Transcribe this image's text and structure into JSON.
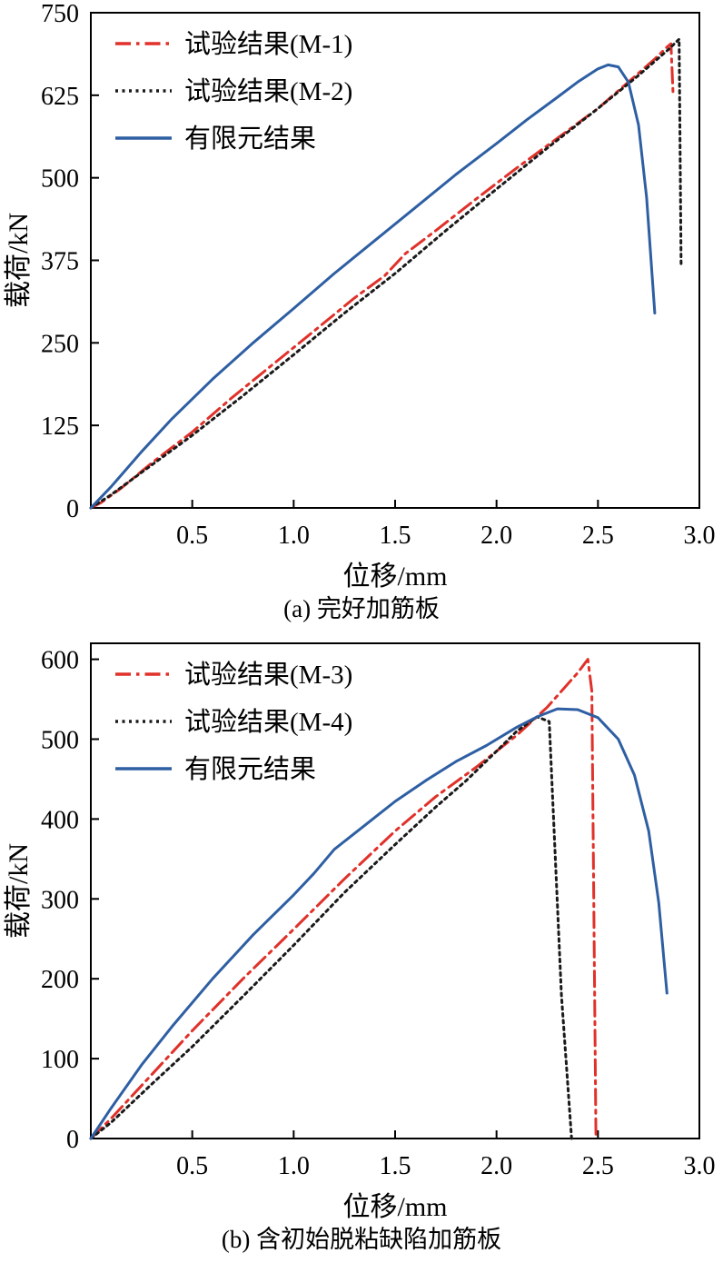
{
  "page": {
    "background": "#ffffff"
  },
  "colors": {
    "test_red": "#e0312a",
    "test_black": "#1a1a1a",
    "fem_blue": "#2e5fa3",
    "axis": "#000000"
  },
  "chart_data": [
    {
      "type": "line",
      "caption": "(a) 完好加筋板",
      "xlabel": "位移/mm",
      "ylabel": "载荷/kN",
      "xlim": [
        0,
        3.0
      ],
      "ylim": [
        0,
        750
      ],
      "xtick_values": [
        0.5,
        1.0,
        1.5,
        2.0,
        2.5,
        3.0
      ],
      "xtick_labels": [
        "0.5",
        "1.0",
        "1.5",
        "2.0",
        "2.5",
        "3.0"
      ],
      "ytick_values": [
        0,
        125,
        250,
        375,
        500,
        625,
        750
      ],
      "ytick_labels": [
        "0",
        "125",
        "250",
        "375",
        "500",
        "625",
        "750"
      ],
      "grid": false,
      "legend_position": "top-left",
      "series": [
        {
          "name": "试验结果(M-1)",
          "color": "#e0312a",
          "style": "dashdot",
          "width": 3,
          "x": [
            0,
            0.05,
            0.15,
            0.3,
            0.5,
            0.7,
            0.9,
            1.1,
            1.3,
            1.45,
            1.55,
            1.7,
            1.9,
            2.1,
            2.3,
            2.5,
            2.65,
            2.78,
            2.84,
            2.86,
            2.87
          ],
          "y": [
            0,
            8,
            30,
            68,
            115,
            168,
            218,
            268,
            318,
            352,
            385,
            420,
            468,
            515,
            560,
            605,
            645,
            680,
            698,
            703,
            628
          ]
        },
        {
          "name": "试验结果(M-2)",
          "color": "#1a1a1a",
          "style": "dotted",
          "width": 3,
          "x": [
            0,
            0.1,
            0.3,
            0.5,
            0.75,
            1.0,
            1.25,
            1.5,
            1.75,
            2.0,
            2.25,
            2.5,
            2.7,
            2.85,
            2.9,
            2.91
          ],
          "y": [
            0,
            20,
            65,
            110,
            170,
            232,
            295,
            355,
            420,
            483,
            545,
            605,
            655,
            695,
            710,
            365
          ]
        },
        {
          "name": "有限元结果",
          "color": "#2e5fa3",
          "style": "solid",
          "width": 3,
          "x": [
            0,
            0.1,
            0.25,
            0.4,
            0.6,
            0.8,
            1.0,
            1.2,
            1.4,
            1.6,
            1.8,
            2.0,
            2.15,
            2.3,
            2.4,
            2.5,
            2.55,
            2.6,
            2.65,
            2.7,
            2.74,
            2.78
          ],
          "y": [
            0,
            32,
            85,
            135,
            195,
            250,
            302,
            355,
            405,
            455,
            505,
            552,
            588,
            622,
            645,
            665,
            671,
            668,
            645,
            580,
            470,
            295
          ]
        }
      ]
    },
    {
      "type": "line",
      "caption": "(b) 含初始脱粘缺陷加筋板",
      "xlabel": "位移/mm",
      "ylabel": "载荷/kN",
      "xlim": [
        0,
        3.0
      ],
      "ylim": [
        0,
        620
      ],
      "xtick_values": [
        0.5,
        1.0,
        1.5,
        2.0,
        2.5,
        3.0
      ],
      "xtick_labels": [
        "0.5",
        "1.0",
        "1.5",
        "2.0",
        "2.5",
        "3.0"
      ],
      "ytick_values": [
        0,
        100,
        200,
        300,
        400,
        500,
        600
      ],
      "ytick_labels": [
        "0",
        "100",
        "200",
        "300",
        "400",
        "500",
        "600"
      ],
      "grid": false,
      "legend_position": "top-left",
      "series": [
        {
          "name": "试验结果(M-3)",
          "color": "#e0312a",
          "style": "dashdot",
          "width": 3,
          "x": [
            0,
            0.1,
            0.3,
            0.5,
            0.75,
            1.0,
            1.25,
            1.5,
            1.7,
            1.9,
            2.1,
            2.25,
            2.4,
            2.45,
            2.47,
            2.49
          ],
          "y": [
            0,
            25,
            80,
            135,
            200,
            262,
            325,
            385,
            428,
            465,
            505,
            540,
            583,
            600,
            560,
            5
          ]
        },
        {
          "name": "试验结果(M-4)",
          "color": "#1a1a1a",
          "style": "dotted",
          "width": 3,
          "x": [
            0,
            0.1,
            0.3,
            0.5,
            0.75,
            1.0,
            1.25,
            1.5,
            1.7,
            1.85,
            2.0,
            2.1,
            2.2,
            2.26,
            2.32,
            2.37
          ],
          "y": [
            0,
            20,
            68,
            115,
            178,
            242,
            308,
            368,
            415,
            448,
            485,
            510,
            528,
            522,
            180,
            0
          ]
        },
        {
          "name": "有限元结果",
          "color": "#2e5fa3",
          "style": "solid",
          "width": 3,
          "x": [
            0,
            0.1,
            0.25,
            0.4,
            0.6,
            0.8,
            1.0,
            1.1,
            1.2,
            1.35,
            1.5,
            1.65,
            1.8,
            1.95,
            2.1,
            2.2,
            2.3,
            2.4,
            2.5,
            2.6,
            2.68,
            2.75,
            2.8,
            2.84
          ],
          "y": [
            0,
            38,
            92,
            140,
            200,
            255,
            305,
            332,
            362,
            392,
            422,
            448,
            472,
            492,
            515,
            528,
            538,
            537,
            527,
            500,
            455,
            385,
            295,
            182
          ]
        }
      ]
    }
  ]
}
